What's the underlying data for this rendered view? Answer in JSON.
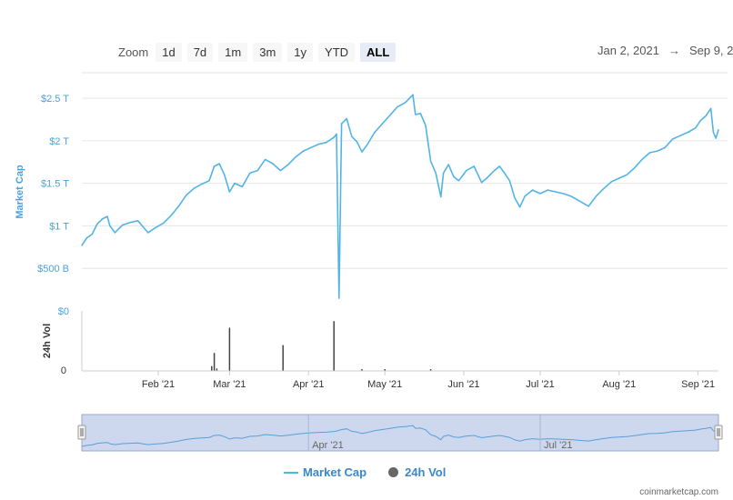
{
  "zoom": {
    "label": "Zoom",
    "buttons": [
      "1d",
      "7d",
      "1m",
      "3m",
      "1y",
      "YTD",
      "ALL"
    ],
    "active": "ALL"
  },
  "range": {
    "from": "Jan 2, 2021",
    "arrow": "→",
    "to": "Sep 9, 2"
  },
  "legend": {
    "market_cap": "Market Cap",
    "volume": "24h Vol"
  },
  "credit": "coinmarketcap.com",
  "colors": {
    "line": "#52b4e6",
    "axis_text": "#4aa3d8",
    "volume_bar": "#444444",
    "navigator_fill": "#cdd8ee"
  },
  "chart_data": {
    "type": "line",
    "title": "",
    "xlabel": "",
    "ylabel": "Market Cap",
    "y_tick_labels": [
      "$0",
      "$500 B",
      "$1 T",
      "$1.5 T",
      "$2 T",
      "$2.5 T"
    ],
    "y_ticks": [
      0,
      500,
      1000,
      1500,
      2000,
      2500
    ],
    "ylim": [
      0,
      2800
    ],
    "y_units": "billion USD",
    "x_tick_labels": [
      "Feb '21",
      "Mar '21",
      "Apr '21",
      "May '21",
      "Jun '21",
      "Jul '21",
      "Aug '21",
      "Sep '21"
    ],
    "x_ticks": [
      "2021-02-01",
      "2021-03-01",
      "2021-04-01",
      "2021-05-01",
      "2021-06-01",
      "2021-07-01",
      "2021-08-01",
      "2021-09-01"
    ],
    "xlim": [
      "2021-01-02",
      "2021-09-09"
    ],
    "series": [
      {
        "name": "Market Cap",
        "points": [
          [
            "2021-01-02",
            770
          ],
          [
            "2021-01-04",
            860
          ],
          [
            "2021-01-06",
            900
          ],
          [
            "2021-01-08",
            1020
          ],
          [
            "2021-01-10",
            1080
          ],
          [
            "2021-01-12",
            1110
          ],
          [
            "2021-01-13",
            1000
          ],
          [
            "2021-01-15",
            920
          ],
          [
            "2021-01-18",
            1010
          ],
          [
            "2021-01-21",
            1040
          ],
          [
            "2021-01-24",
            1060
          ],
          [
            "2021-01-26",
            990
          ],
          [
            "2021-01-28",
            920
          ],
          [
            "2021-01-31",
            980
          ],
          [
            "2021-02-03",
            1030
          ],
          [
            "2021-02-06",
            1120
          ],
          [
            "2021-02-09",
            1230
          ],
          [
            "2021-02-12",
            1360
          ],
          [
            "2021-02-15",
            1440
          ],
          [
            "2021-02-18",
            1490
          ],
          [
            "2021-02-21",
            1530
          ],
          [
            "2021-02-23",
            1700
          ],
          [
            "2021-02-25",
            1730
          ],
          [
            "2021-02-27",
            1600
          ],
          [
            "2021-03-01",
            1400
          ],
          [
            "2021-03-03",
            1500
          ],
          [
            "2021-03-06",
            1460
          ],
          [
            "2021-03-09",
            1620
          ],
          [
            "2021-03-12",
            1650
          ],
          [
            "2021-03-15",
            1780
          ],
          [
            "2021-03-18",
            1730
          ],
          [
            "2021-03-21",
            1650
          ],
          [
            "2021-03-24",
            1720
          ],
          [
            "2021-03-27",
            1810
          ],
          [
            "2021-03-30",
            1880
          ],
          [
            "2021-04-02",
            1920
          ],
          [
            "2021-04-05",
            1960
          ],
          [
            "2021-04-08",
            1980
          ],
          [
            "2021-04-11",
            2040
          ],
          [
            "2021-04-12",
            2080
          ],
          [
            "2021-04-13",
            150
          ],
          [
            "2021-04-14",
            2200
          ],
          [
            "2021-04-16",
            2260
          ],
          [
            "2021-04-18",
            2050
          ],
          [
            "2021-04-20",
            1990
          ],
          [
            "2021-04-22",
            1870
          ],
          [
            "2021-04-24",
            1950
          ],
          [
            "2021-04-27",
            2100
          ],
          [
            "2021-04-30",
            2200
          ],
          [
            "2021-05-03",
            2300
          ],
          [
            "2021-05-06",
            2400
          ],
          [
            "2021-05-09",
            2450
          ],
          [
            "2021-05-12",
            2540
          ],
          [
            "2021-05-13",
            2310
          ],
          [
            "2021-05-15",
            2320
          ],
          [
            "2021-05-17",
            2180
          ],
          [
            "2021-05-19",
            1760
          ],
          [
            "2021-05-21",
            1620
          ],
          [
            "2021-05-23",
            1340
          ],
          [
            "2021-05-24",
            1620
          ],
          [
            "2021-05-26",
            1720
          ],
          [
            "2021-05-28",
            1580
          ],
          [
            "2021-05-30",
            1530
          ],
          [
            "2021-06-02",
            1650
          ],
          [
            "2021-06-05",
            1700
          ],
          [
            "2021-06-08",
            1510
          ],
          [
            "2021-06-10",
            1560
          ],
          [
            "2021-06-13",
            1650
          ],
          [
            "2021-06-15",
            1700
          ],
          [
            "2021-06-17",
            1620
          ],
          [
            "2021-06-19",
            1530
          ],
          [
            "2021-06-21",
            1330
          ],
          [
            "2021-06-23",
            1220
          ],
          [
            "2021-06-25",
            1350
          ],
          [
            "2021-06-28",
            1420
          ],
          [
            "2021-07-01",
            1380
          ],
          [
            "2021-07-04",
            1420
          ],
          [
            "2021-07-07",
            1400
          ],
          [
            "2021-07-10",
            1380
          ],
          [
            "2021-07-13",
            1350
          ],
          [
            "2021-07-16",
            1300
          ],
          [
            "2021-07-20",
            1230
          ],
          [
            "2021-07-23",
            1350
          ],
          [
            "2021-07-26",
            1440
          ],
          [
            "2021-07-29",
            1520
          ],
          [
            "2021-08-01",
            1560
          ],
          [
            "2021-08-04",
            1600
          ],
          [
            "2021-08-07",
            1680
          ],
          [
            "2021-08-10",
            1780
          ],
          [
            "2021-08-13",
            1860
          ],
          [
            "2021-08-16",
            1880
          ],
          [
            "2021-08-19",
            1920
          ],
          [
            "2021-08-22",
            2020
          ],
          [
            "2021-08-25",
            2060
          ],
          [
            "2021-08-28",
            2100
          ],
          [
            "2021-08-31",
            2150
          ],
          [
            "2021-09-02",
            2240
          ],
          [
            "2021-09-04",
            2290
          ],
          [
            "2021-09-06",
            2380
          ],
          [
            "2021-09-07",
            2100
          ],
          [
            "2021-09-08",
            2030
          ],
          [
            "2021-09-09",
            2130
          ]
        ]
      },
      {
        "name": "24h Vol",
        "type": "bar",
        "points": [
          [
            "2021-02-22",
            8
          ],
          [
            "2021-02-23",
            30
          ],
          [
            "2021-02-24",
            4
          ],
          [
            "2021-03-01",
            72
          ],
          [
            "2021-03-22",
            43
          ],
          [
            "2021-04-11",
            83
          ],
          [
            "2021-04-22",
            3
          ],
          [
            "2021-05-01",
            3
          ],
          [
            "2021-05-19",
            3
          ]
        ]
      }
    ],
    "volume_panel": {
      "ylabel": "24h Vol",
      "y_tick_labels": [
        "0"
      ]
    },
    "navigator": {
      "x_tick_labels": [
        "Apr '21",
        "Jul '21"
      ],
      "x_ticks": [
        "2021-04-01",
        "2021-07-01"
      ]
    },
    "legend_position": "bottom-center",
    "grid": true
  }
}
